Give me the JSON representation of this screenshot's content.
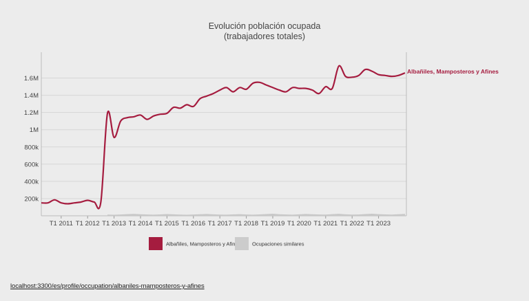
{
  "footer": {
    "url": "localhost:3300/es/profile/occupation/albaniles-mamposteros-y-afines"
  },
  "chart_data": {
    "type": "line",
    "title": "Evolución población ocupada",
    "subtitle": "(trabajadores totales)",
    "xlabel": "",
    "ylabel": "",
    "ylim": [
      0,
      1900000
    ],
    "y_ticks": [
      200000,
      400000,
      600000,
      800000,
      1000000,
      1200000,
      1400000,
      1600000
    ],
    "y_tick_labels": [
      "200k",
      "400k",
      "600k",
      "800k",
      "1M",
      "1.2M",
      "1.4M",
      "1.6M"
    ],
    "x_tick_labels": [
      "T1 2011",
      "T1 2012",
      "T1 2013",
      "T1 2014",
      "T1 2015",
      "T1 2016",
      "T1 2017",
      "T1 2018",
      "T1 2019",
      "T1 2020",
      "T1 2021",
      "T1 2022",
      "T1 2023"
    ],
    "series": [
      {
        "name": "Albañiles, Mamposteros y Afines",
        "color": "#a51c3f",
        "type": "line",
        "values": [
          150000,
          150000,
          185000,
          150000,
          140000,
          150000,
          160000,
          180000,
          160000,
          160000,
          1190000,
          910000,
          1100000,
          1140000,
          1150000,
          1170000,
          1120000,
          1160000,
          1180000,
          1190000,
          1260000,
          1250000,
          1290000,
          1270000,
          1360000,
          1390000,
          1420000,
          1460000,
          1490000,
          1440000,
          1490000,
          1470000,
          1540000,
          1550000,
          1520000,
          1490000,
          1460000,
          1440000,
          1490000,
          1480000,
          1480000,
          1460000,
          1420000,
          1500000,
          1480000,
          1740000,
          1620000,
          1610000,
          1630000,
          1700000,
          1680000,
          1640000,
          1630000,
          1620000,
          1630000,
          1660000
        ]
      },
      {
        "name": "Ocupaciones similares",
        "color": "#c8c8c8",
        "type": "area",
        "values": [
          10000,
          12000,
          15000,
          18000,
          14000,
          11000,
          13000,
          16000,
          20000,
          17000,
          14000,
          12000,
          15000,
          19000,
          22000,
          18000,
          15000,
          13000,
          16000,
          20000,
          17000,
          14000,
          12000,
          15000,
          18000,
          21000,
          17000,
          14000,
          13000,
          16000,
          19000,
          15000,
          13000,
          16000,
          20000,
          24000,
          18000,
          15000,
          13000,
          17000,
          21000,
          18000,
          15000,
          14000,
          19000,
          23000,
          17000,
          14000,
          15000,
          20000,
          24000,
          19000,
          16000,
          14000,
          18000,
          22000
        ]
      }
    ],
    "line_label": "Albañiles, Mamposteros y Afines",
    "legend": [
      {
        "label": "Albañiles, Mamposteros y Afines",
        "color": "#a51c3f"
      },
      {
        "label": "Ocupaciones similares",
        "color": "#cccccc"
      }
    ],
    "legend_position": "bottom",
    "grid": true
  }
}
